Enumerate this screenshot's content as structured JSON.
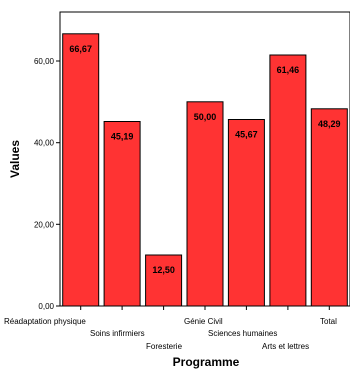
{
  "chart_data": {
    "type": "bar",
    "title": "",
    "xlabel": "Programme",
    "ylabel": "Values",
    "categories": [
      "Réadaptation physique",
      "Soins infirmiers",
      "Foresterie",
      "Génie Civil",
      "Sciences humaines",
      "Arts et lettres",
      "Total"
    ],
    "values": [
      66.67,
      45.19,
      12.5,
      50.0,
      45.67,
      61.46,
      48.29
    ],
    "value_labels": [
      "66,67",
      "45,19",
      "12,50",
      "50,00",
      "45,67",
      "61,46",
      "48,29"
    ],
    "yticks": [
      {
        "value": 0,
        "label": "0,00"
      },
      {
        "value": 20,
        "label": "20,00"
      },
      {
        "value": 40,
        "label": "40,00"
      },
      {
        "value": 60,
        "label": "60,00"
      }
    ],
    "ylim": [
      0,
      72
    ],
    "grid": false,
    "legend": "none",
    "bar_color": "#ff3333",
    "bar_edge_color": "#000000"
  }
}
